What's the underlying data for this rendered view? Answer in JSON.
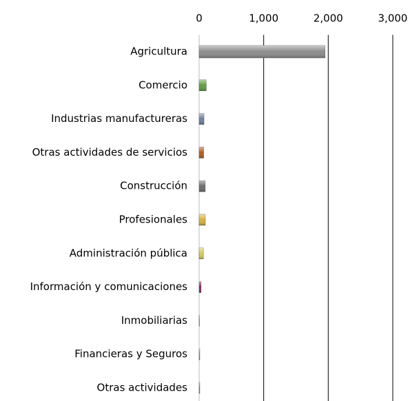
{
  "chart_data": {
    "type": "bar",
    "orientation": "horizontal",
    "categories": [
      "Agricultura",
      "Comercio",
      "Industrias manufactureras",
      "Otras actividades de servicios",
      "Construcción",
      "Profesionales",
      "Administración pública",
      "Información y comunicaciones",
      "Inmobiliarias",
      "Financieras y Seguros",
      "Otras actividades"
    ],
    "values": [
      1950,
      110,
      75,
      70,
      95,
      95,
      65,
      30,
      5,
      10,
      10
    ],
    "colors": [
      "#8c8c8c",
      "#5a9e3c",
      "#6f7fa3",
      "#b35a1f",
      "#6e6e6e",
      "#d9b23a",
      "#d6c95a",
      "#8b1a6b",
      "#9a9a9a",
      "#9a9a9a",
      "#9a7a8a"
    ],
    "xlim": [
      0,
      3000
    ],
    "xticks": [
      0,
      {
        "value": 1000,
        "label": "1,000"
      },
      {
        "value": 2000,
        "label": "2,000"
      },
      {
        "value": 3000,
        "label": "3,000"
      }
    ],
    "grid": true
  }
}
